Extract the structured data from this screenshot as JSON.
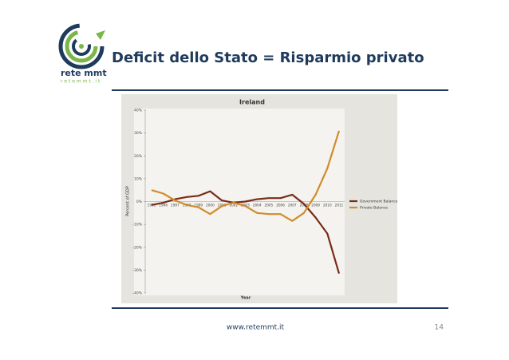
{
  "slide": {
    "title": "Deficit dello Stato = Risparmio privato",
    "logo_name": "rete mmt",
    "logo_site": "r e t e m m t . i t",
    "footer_url": "www.retemmt.it",
    "page_number": "14"
  },
  "chart_data": {
    "type": "line",
    "title": "Ireland",
    "y_label": "Percent of GDP",
    "x_label": "Year",
    "categories": [
      "1995",
      "1996",
      "1997",
      "1998",
      "1999",
      "2000",
      "2001",
      "2002",
      "2003",
      "2004",
      "2005",
      "2006",
      "2007",
      "2008",
      "2009",
      "2010",
      "2011"
    ],
    "series": [
      {
        "name": "Government Balance",
        "color": "#7a2b18",
        "values": [
          -1.5,
          -0.5,
          1,
          2,
          2.5,
          4.5,
          0.5,
          -0.5,
          0,
          1,
          1.5,
          1.5,
          3,
          -1,
          -7,
          -14,
          -31.5
        ]
      },
      {
        "name": "Private Balance",
        "color": "#d08c2c",
        "values": [
          5,
          3.5,
          0.5,
          -1.5,
          -2.5,
          -5.5,
          -2,
          -0.5,
          -2,
          -5,
          -5.5,
          -5.5,
          -8.5,
          -5,
          3,
          14.5,
          31
        ]
      }
    ],
    "ylim": [
      -40,
      40
    ],
    "yticks": [
      {
        "value": -40,
        "label": "-40%"
      },
      {
        "value": -30,
        "label": "-30%"
      },
      {
        "value": -20,
        "label": "-20%"
      },
      {
        "value": -10,
        "label": "-10%"
      },
      {
        "value": 0,
        "label": "0%"
      },
      {
        "value": 10,
        "label": "10%"
      },
      {
        "value": 20,
        "label": "20%"
      },
      {
        "value": 30,
        "label": "30%"
      },
      {
        "value": 40,
        "label": "40%"
      }
    ],
    "legend": "right"
  }
}
